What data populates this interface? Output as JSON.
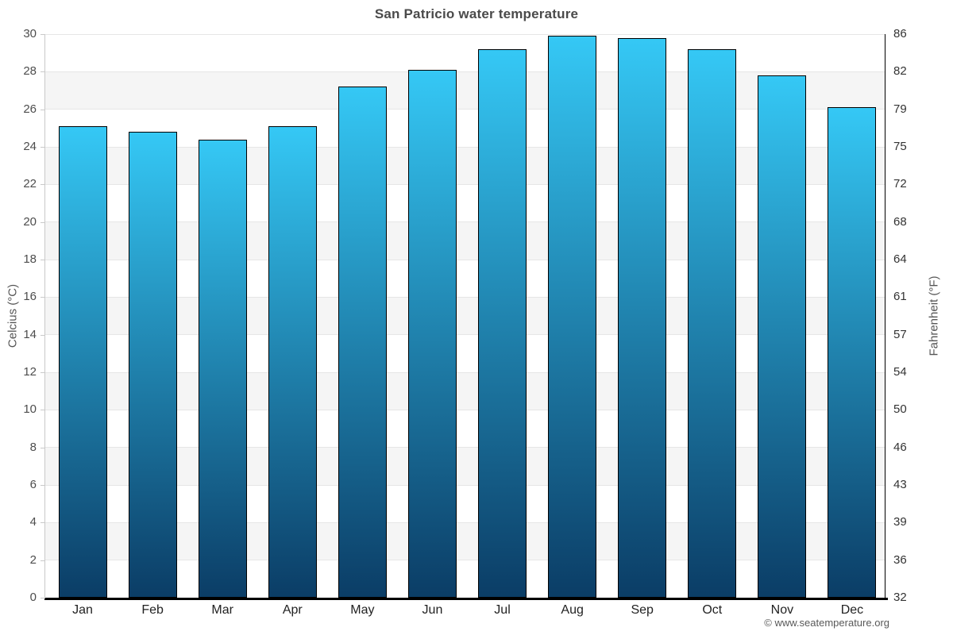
{
  "chart_data": {
    "type": "bar",
    "title": "San Patricio water temperature",
    "categories": [
      "Jan",
      "Feb",
      "Mar",
      "Apr",
      "May",
      "Jun",
      "Jul",
      "Aug",
      "Sep",
      "Oct",
      "Nov",
      "Dec"
    ],
    "values": [
      25.1,
      24.8,
      24.4,
      25.1,
      27.2,
      28.1,
      29.2,
      29.9,
      29.8,
      29.2,
      27.8,
      26.1
    ],
    "ylabel_left": "Celcius (°C)",
    "ylabel_right": "Fahrenheit (°F)",
    "ylim": [
      0,
      30
    ],
    "ytick_step": 2,
    "yticks_celsius": [
      0,
      2,
      4,
      6,
      8,
      10,
      12,
      14,
      16,
      18,
      20,
      22,
      24,
      26,
      28,
      30
    ],
    "yticks_fahrenheit": [
      32,
      36,
      39,
      43,
      46,
      50,
      54,
      57,
      61,
      64,
      68,
      72,
      75,
      79,
      82,
      86
    ],
    "grid": true,
    "legend_position": "none",
    "colors": {
      "bar_gradient_top": "#35c8f5",
      "bar_gradient_bottom": "#0b3d66",
      "bar_border": "#000000",
      "plot_band": "#f5f5f5",
      "gridline": "#e6e6e6",
      "axis_left": "#c9c9c9",
      "axis_right": "#000000",
      "axis_bottom": "#000000",
      "title_text": "#4a4a4a"
    }
  },
  "footer": {
    "copyright": "© www.seatemperature.org"
  }
}
